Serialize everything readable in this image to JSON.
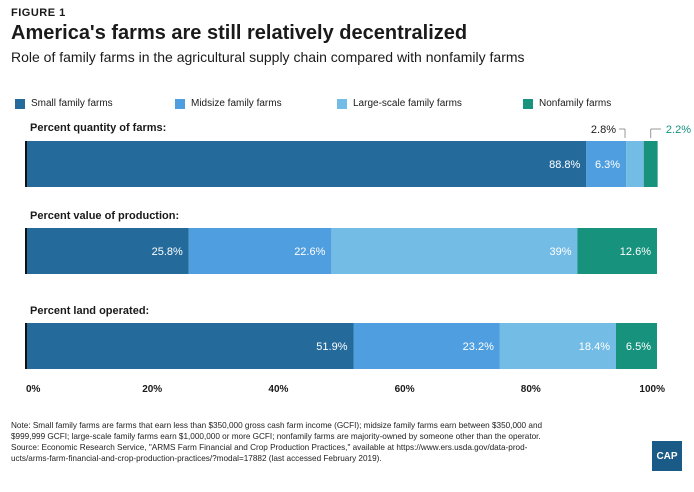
{
  "figure_label": "FIGURE 1",
  "title": "America's farms are still relatively decentralized",
  "subtitle": "Role of family farms in the agricultural supply chain compared with nonfamily farms",
  "colors": {
    "small": "#246b9c",
    "midsize": "#4f9ee0",
    "large": "#73bce5",
    "nonfamily": "#17927d",
    "annotation_teal": "#17927d"
  },
  "legend": [
    {
      "label": "Small family farms",
      "color": "#246b9c"
    },
    {
      "label": "Midsize family farms",
      "color": "#4f9ee0"
    },
    {
      "label": "Large-scale family farms",
      "color": "#73bce5"
    },
    {
      "label": "Nonfamily farms",
      "color": "#17927d"
    }
  ],
  "chart_data": {
    "type": "bar",
    "orientation": "horizontal",
    "stacked": true,
    "categories": [
      "Percent quantity of farms:",
      "Percent value of production:",
      "Percent land operated:"
    ],
    "series": [
      {
        "name": "Small family farms",
        "values": [
          88.8,
          25.8,
          51.9
        ],
        "labels": [
          "88.8%",
          "25.8%",
          "51.9%"
        ]
      },
      {
        "name": "Midsize family farms",
        "values": [
          6.3,
          22.6,
          23.2
        ],
        "labels": [
          "6.3%",
          "22.6%",
          "23.2%"
        ]
      },
      {
        "name": "Large-scale family farms",
        "values": [
          2.8,
          39,
          18.4
        ],
        "labels": [
          "2.8%",
          "39%",
          "18.4%"
        ]
      },
      {
        "name": "Nonfamily farms",
        "values": [
          2.2,
          12.6,
          6.5
        ],
        "labels": [
          "2.2%",
          "12.6%",
          "6.5%"
        ]
      }
    ],
    "xlim": [
      0,
      100
    ],
    "xticks": [
      "0%",
      "20%",
      "40%",
      "60%",
      "80%",
      "100%"
    ],
    "grid": false,
    "legend_position": "top"
  },
  "note_lines": [
    "Note: Small family farms are farms that earn less than $350,000 gross cash farm income (GCFI); midsize family farms earn between $350,000 and",
    "$999,999 GCFI; large-scale family farms earn $1,000,000 or more GCFI; nonfamily farms are majority-owned by someone other than the operator.",
    "Source: Economic Research Service, \"ARMS Farm Financial and Crop Production Practices,\" available at https://www.ers.usda.gov/data-prod-",
    "ucts/arms-farm-financial-and-crop-production-practices/?modal=17882 (last accessed February 2019)."
  ],
  "logo_text": "CAP"
}
